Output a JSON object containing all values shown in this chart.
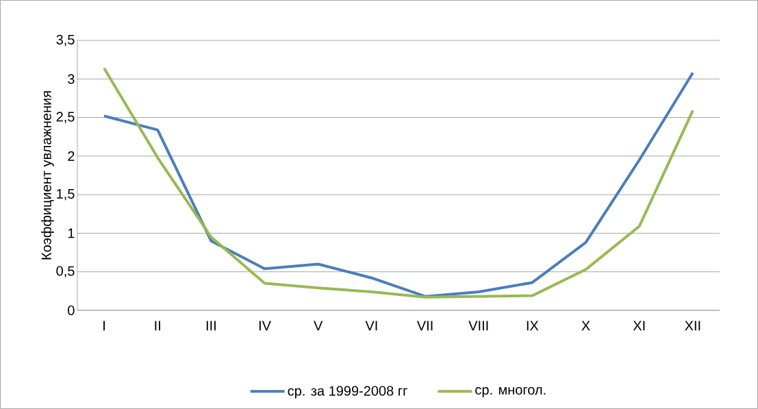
{
  "chart_data": {
    "type": "line",
    "ylabel": "Коэффициент увлажнения",
    "categories": [
      "I",
      "II",
      "III",
      "IV",
      "V",
      "VI",
      "VII",
      "VIII",
      "IX",
      "X",
      "XI",
      "XII"
    ],
    "series": [
      {
        "name": "ср. за 1999-2008 гг",
        "color": "#4a7ebb",
        "values": [
          2.52,
          2.34,
          0.9,
          0.54,
          0.6,
          0.42,
          0.18,
          0.24,
          0.36,
          0.88,
          1.95,
          3.08
        ]
      },
      {
        "name": "ср. многол.",
        "color": "#98b954",
        "values": [
          3.14,
          1.98,
          0.95,
          0.35,
          0.29,
          0.24,
          0.17,
          0.18,
          0.19,
          0.53,
          1.09,
          2.59
        ]
      }
    ],
    "ylim": [
      0,
      3.5
    ],
    "yticks": [
      0,
      {
        "value": 0.5,
        "label": "0,5"
      },
      1,
      {
        "value": 1.5,
        "label": "1,5"
      },
      2,
      {
        "value": 2.5,
        "label": "2,5"
      },
      3,
      {
        "value": 3.5,
        "label": "3,5"
      }
    ],
    "grid": "y",
    "legend": "bottom"
  }
}
